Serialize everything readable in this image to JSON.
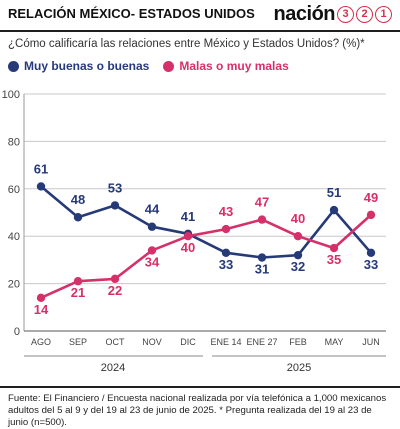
{
  "header": {
    "section_title": "RELACIÓN MÉXICO- ESTADOS UNIDOS",
    "brand_word": "nación",
    "brand_digits": [
      "3",
      "2",
      "1"
    ]
  },
  "question": "¿Cómo calificaría las relaciones entre México y Estados Unidos?  (%)*",
  "colors": {
    "navy": "#263a78",
    "pink": "#d6306a",
    "axis": "#9a9a9a",
    "grid": "#c8c8c8"
  },
  "chart_data": {
    "type": "line",
    "categories": [
      "AGO",
      "SEP",
      "OCT",
      "NOV",
      "DIC",
      "ENE 14",
      "ENE 27",
      "FEB",
      "MAY",
      "JUN"
    ],
    "year_labels": [
      "2024",
      "2025"
    ],
    "series": [
      {
        "name": "Muy buenas o buenas",
        "color": "#263a78",
        "values": [
          61,
          48,
          53,
          44,
          41,
          33,
          31,
          32,
          51,
          33
        ]
      },
      {
        "name": "Malas o muy malas",
        "color": "#d6306a",
        "values": [
          14,
          21,
          22,
          34,
          40,
          43,
          47,
          40,
          35,
          49
        ]
      }
    ],
    "ylim": [
      0,
      100
    ],
    "yticks": [
      0,
      20,
      40,
      60,
      80,
      100
    ],
    "grid": false,
    "legend": "top-left"
  },
  "footer": {
    "source": "Fuente: El Financiero / Encuesta nacional realizada por vía telefónica a 1,000 mexicanos adultos del 5 al 9 y del 19 al 23 de junio de 2025. * Pregunta realizada del 19 al 23 de junio (n=500)."
  }
}
